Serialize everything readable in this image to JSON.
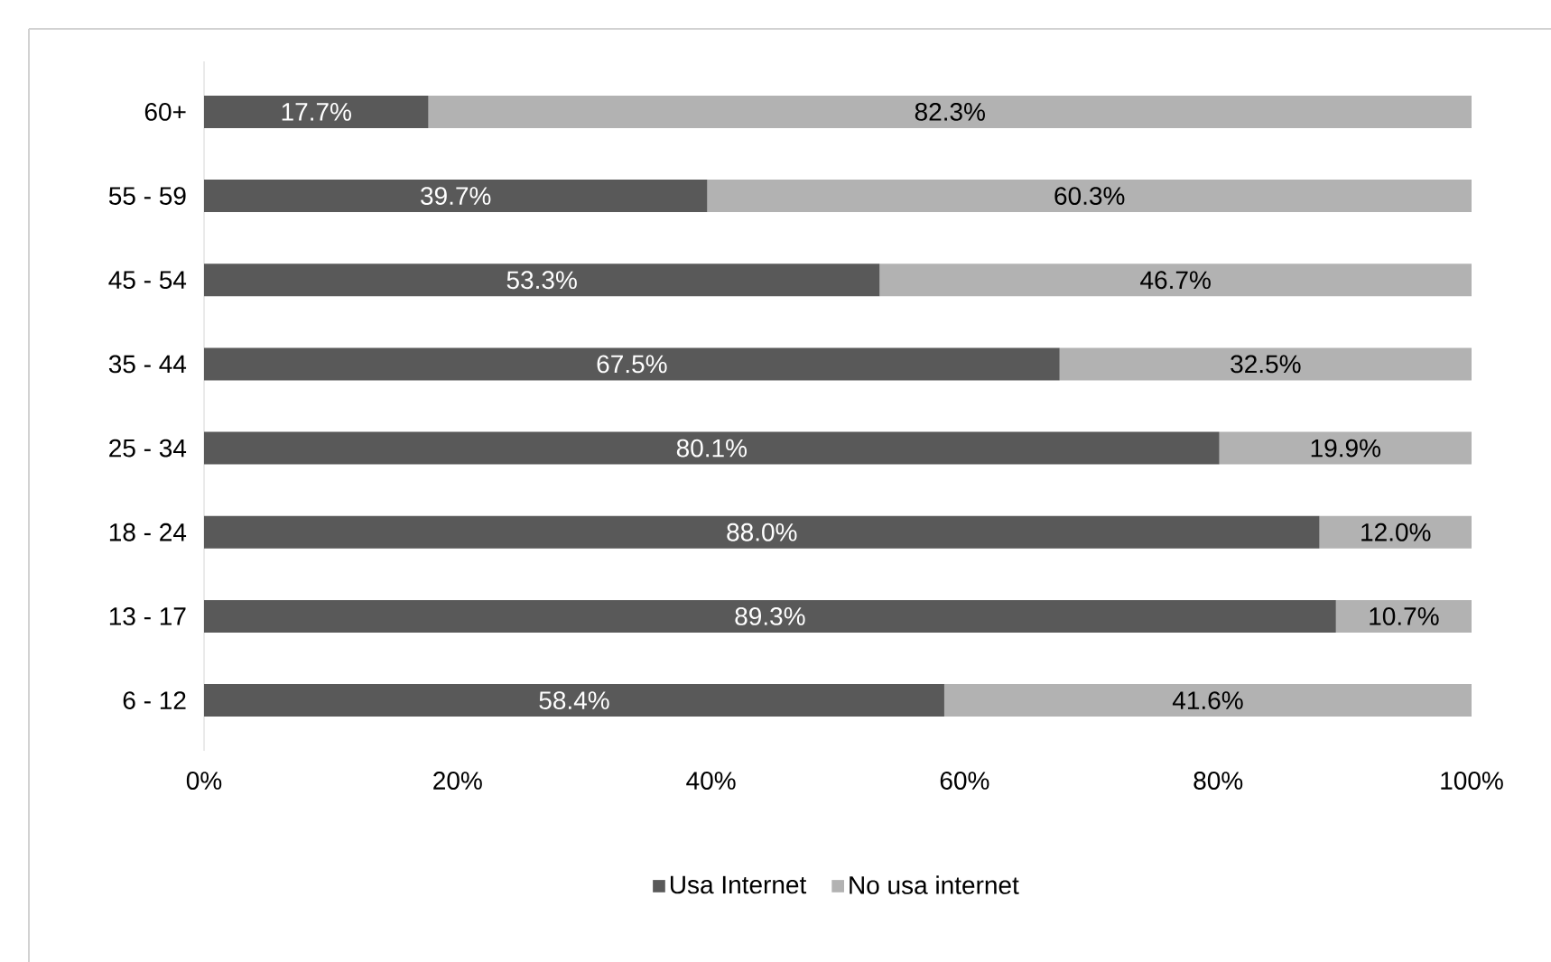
{
  "chart_data": {
    "type": "bar",
    "orientation": "horizontal",
    "stacked": true,
    "legend": "bottom",
    "grid": false,
    "categories": [
      "60+",
      "55 - 59",
      "45 - 54",
      "35 - 44",
      "25 - 34",
      "18 - 24",
      "13 - 17",
      "6 - 12"
    ],
    "xlim": [
      0,
      100
    ],
    "xticks": [
      {
        "value": 0,
        "label": "0%"
      },
      {
        "value": 20,
        "label": "20%"
      },
      {
        "value": 40,
        "label": "40%"
      },
      {
        "value": 60,
        "label": "60%"
      },
      {
        "value": 80,
        "label": "80%"
      },
      {
        "value": 100,
        "label": "100%"
      }
    ],
    "series": [
      {
        "name": "Usa Internet",
        "color": "#595959",
        "values": [
          17.7,
          39.7,
          53.3,
          67.5,
          80.1,
          88.0,
          89.3,
          58.4
        ],
        "value_labels": [
          "17.7%",
          "39.7%",
          "53.3%",
          "67.5%",
          "80.1%",
          "88.0%",
          "89.3%",
          "58.4%"
        ]
      },
      {
        "name": "No usa internet",
        "color": "#b2b2b2",
        "values": [
          82.3,
          60.3,
          46.7,
          32.5,
          19.9,
          12.0,
          10.7,
          41.6
        ],
        "value_labels": [
          "82.3%",
          "60.3%",
          "46.7%",
          "32.5%",
          "19.9%",
          "12.0%",
          "10.7%",
          "41.6%"
        ]
      }
    ]
  }
}
